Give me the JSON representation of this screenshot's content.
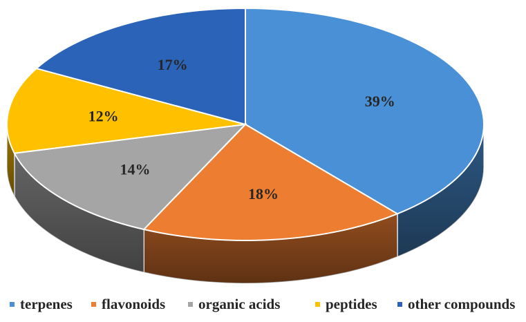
{
  "chart_data": {
    "type": "pie",
    "title": "",
    "categories": [
      "terpenes",
      "flavonoids",
      "organic acids",
      "peptides",
      "other compounds"
    ],
    "values": [
      39,
      18,
      14,
      12,
      17
    ],
    "labels": [
      "39%",
      "18%",
      "14%",
      "12%",
      "17%"
    ],
    "colors": [
      "#4a90d6",
      "#ed7d31",
      "#a5a5a5",
      "#ffc000",
      "#2b63b8"
    ],
    "legend_placement": "bottom",
    "three_d": true
  }
}
